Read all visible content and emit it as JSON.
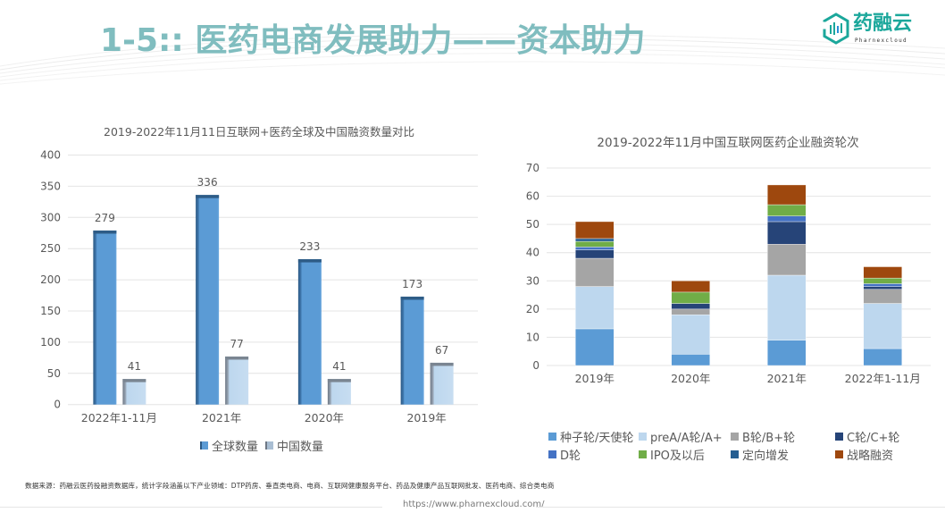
{
  "header": {
    "title": "1-5:: 医药电商发展助力——资本助力",
    "logo": {
      "name": "药融云",
      "subtitle": "Pharnexcloud",
      "icon": "hexagon-chart-logo-icon",
      "color": "#1BA79B"
    }
  },
  "chart_data": [
    {
      "type": "bar",
      "title": "2019-2022年11月11日互联网+医药全球及中国融资数量对比",
      "xlabel": "",
      "ylabel": "",
      "categories": [
        "2022年1-11月",
        "2021年",
        "2020年",
        "2019年"
      ],
      "series": [
        {
          "name": "全球数量",
          "values": [
            279,
            336,
            233,
            173
          ],
          "color": "#5B9BD5"
        },
        {
          "name": "中国数量",
          "values": [
            41,
            77,
            41,
            67
          ],
          "color": "#BDD7EE"
        }
      ],
      "ylim": [
        0,
        400
      ],
      "yticks": [
        0,
        50,
        100,
        150,
        200,
        250,
        300,
        350,
        400
      ],
      "grid": true,
      "data_labels": true,
      "legend": "bottom"
    },
    {
      "type": "bar",
      "stacked": true,
      "title": "2019-2022年11月中国互联网医药企业融资轮次",
      "xlabel": "",
      "ylabel": "",
      "categories": [
        "2019年",
        "2020年",
        "2021年",
        "2022年1-11月"
      ],
      "series": [
        {
          "name": "种子轮/天使轮",
          "values": [
            13,
            4,
            9,
            6
          ],
          "color": "#5B9BD5"
        },
        {
          "name": "preA/A轮/A+",
          "values": [
            15,
            14,
            23,
            16
          ],
          "color": "#BDD7EE"
        },
        {
          "name": "B轮/B+轮",
          "values": [
            10,
            2,
            11,
            5
          ],
          "color": "#A5A5A5"
        },
        {
          "name": "C轮/C+轮",
          "values": [
            3,
            2,
            8,
            1
          ],
          "color": "#264478"
        },
        {
          "name": "D轮",
          "values": [
            1,
            0,
            2,
            1
          ],
          "color": "#4472C4"
        },
        {
          "name": "IPO及以后",
          "values": [
            2,
            4,
            4,
            2
          ],
          "color": "#70AD47"
        },
        {
          "name": "定向增发",
          "values": [
            1,
            0,
            0,
            0
          ],
          "color": "#255E91"
        },
        {
          "name": "战略融资",
          "values": [
            6,
            4,
            7,
            4
          ],
          "color": "#9E480E"
        }
      ],
      "ylim": [
        0,
        70
      ],
      "yticks": [
        0,
        10,
        20,
        30,
        40,
        50,
        60,
        70
      ],
      "grid": true,
      "legend": "bottom"
    }
  ],
  "footer": {
    "source": "数据来源：药融云医药投融资数据库，统计字段涵盖以下产业领域：DTP药房、垂直类电商、电商、互联网健康服务平台、药品及健康产品互联网批发、医药电商、综合类电商",
    "url": "https://www.pharnexcloud.com/"
  }
}
